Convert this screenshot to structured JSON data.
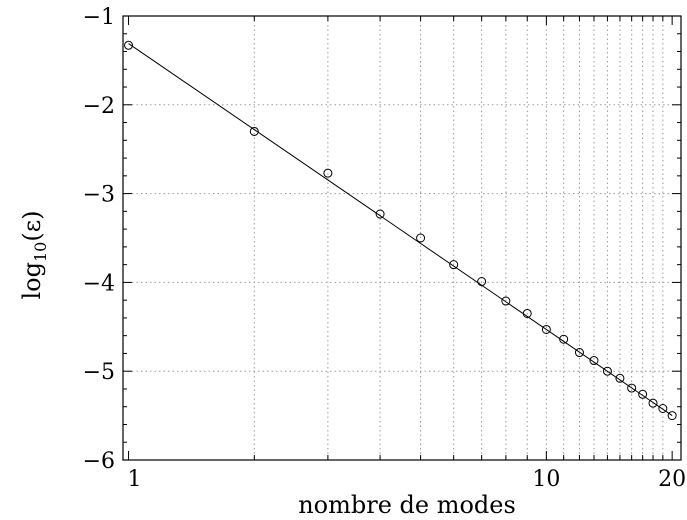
{
  "chart_data": {
    "type": "scatter",
    "xlabel": "nombre de modes",
    "ylabel": "log",
    "ylabel_sub": "10",
    "ylabel_arg": "(ε)",
    "x_scale": "log",
    "xlim": [
      0.97,
      21
    ],
    "ylim": [
      -6,
      -1
    ],
    "x_ticks": [
      {
        "value": 1,
        "label": "1"
      },
      {
        "value": 10,
        "label": "10"
      },
      {
        "value": 20,
        "label": "20"
      }
    ],
    "y_ticks": [
      {
        "value": -1,
        "label": "−1"
      },
      {
        "value": -2,
        "label": "−2"
      },
      {
        "value": -3,
        "label": "−3"
      },
      {
        "value": -4,
        "label": "−4"
      },
      {
        "value": -5,
        "label": "−5"
      },
      {
        "value": -6,
        "label": "−6"
      }
    ],
    "grid": true,
    "series": [
      {
        "kind": "markers",
        "marker": "open-circle",
        "x": [
          1,
          2,
          3,
          4,
          5,
          6,
          7,
          8,
          9,
          10,
          11,
          12,
          13,
          14,
          15,
          16,
          17,
          18,
          19,
          20
        ],
        "y": [
          -1.33,
          -2.3,
          -2.77,
          -3.23,
          -3.5,
          -3.8,
          -3.99,
          -4.21,
          -4.35,
          -4.53,
          -4.64,
          -4.79,
          -4.88,
          -5.0,
          -5.08,
          -5.19,
          -5.26,
          -5.36,
          -5.42,
          -5.5
        ]
      },
      {
        "kind": "line",
        "x": [
          1,
          20
        ],
        "y": [
          -1.31,
          -5.5
        ]
      }
    ]
  }
}
